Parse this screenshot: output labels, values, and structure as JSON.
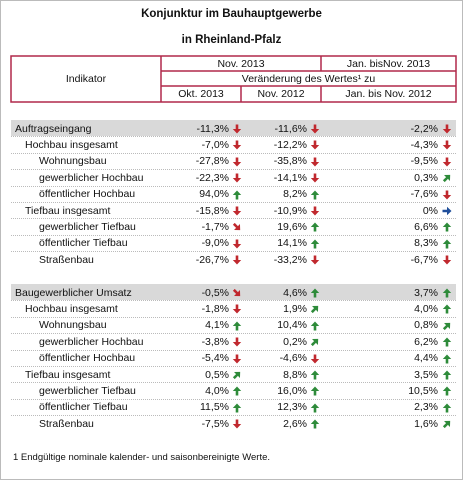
{
  "header": {
    "title": "Konjunktur im Bauhauptgewerbe",
    "subtitle": "in Rheinland-Pfalz"
  },
  "table_header": {
    "indicator": "Indikator",
    "period_month": "Nov. 2013",
    "period_ytd": "Jan. bisNov. 2013",
    "change": "Veränderung des Wertes¹ zu",
    "columns": [
      "Okt. 2013",
      "Nov. 2012",
      "Jan. bis Nov. 2012"
    ]
  },
  "sections": [
    {
      "header": {
        "label": "Auftragseingang",
        "cells": [
          "-11,3%",
          "-11,6%",
          "-2,2%"
        ],
        "arrows": [
          "down",
          "down",
          "down"
        ]
      },
      "rows": [
        {
          "label": "Hochbau insgesamt",
          "level": 1,
          "cells": [
            "-7,0%",
            "-12,2%",
            "-4,3%"
          ],
          "arrows": [
            "down",
            "down",
            "down"
          ]
        },
        {
          "label": "Wohnungsbau",
          "level": 2,
          "cells": [
            "-27,8%",
            "-35,8%",
            "-9,5%"
          ],
          "arrows": [
            "down",
            "down",
            "down"
          ]
        },
        {
          "label": "gewerblicher Hochbau",
          "level": 2,
          "cells": [
            "-22,3%",
            "-14,1%",
            "0,3%"
          ],
          "arrows": [
            "down",
            "down",
            "up-right"
          ]
        },
        {
          "label": "öffentlicher Hochbau",
          "level": 2,
          "cells": [
            "94,0%",
            "8,2%",
            "-7,6%"
          ],
          "arrows": [
            "up",
            "up",
            "down"
          ]
        },
        {
          "label": "Tiefbau insgesamt",
          "level": 1,
          "cells": [
            "-15,8%",
            "-10,9%",
            "0%"
          ],
          "arrows": [
            "down",
            "down",
            "right"
          ]
        },
        {
          "label": "gewerblicher Tiefbau",
          "level": 2,
          "cells": [
            "-1,7%",
            "19,6%",
            "6,6%"
          ],
          "arrows": [
            "down-right",
            "up",
            "up"
          ]
        },
        {
          "label": "öffentlicher Tiefbau",
          "level": 2,
          "cells": [
            "-9,0%",
            "14,1%",
            "8,3%"
          ],
          "arrows": [
            "down",
            "up",
            "up"
          ]
        },
        {
          "label": "Straßenbau",
          "level": 2,
          "cells": [
            "-26,7%",
            "-33,2%",
            "-6,7%"
          ],
          "arrows": [
            "down",
            "down",
            "down"
          ]
        }
      ]
    },
    {
      "header": {
        "label": "Baugewerblicher Umsatz",
        "cells": [
          "-0,5%",
          "4,6%",
          "3,7%"
        ],
        "arrows": [
          "down-right",
          "up",
          "up"
        ]
      },
      "rows": [
        {
          "label": "Hochbau insgesamt",
          "level": 1,
          "cells": [
            "-1,8%",
            "1,9%",
            "4,0%"
          ],
          "arrows": [
            "down",
            "up-right",
            "up"
          ]
        },
        {
          "label": "Wohnungsbau",
          "level": 2,
          "cells": [
            "4,1%",
            "10,4%",
            "0,8%"
          ],
          "arrows": [
            "up",
            "up",
            "up-right"
          ]
        },
        {
          "label": "gewerblicher Hochbau",
          "level": 2,
          "cells": [
            "-3,8%",
            "0,2%",
            "6,2%"
          ],
          "arrows": [
            "down",
            "up-right",
            "up"
          ]
        },
        {
          "label": "öffentlicher Hochbau",
          "level": 2,
          "cells": [
            "-5,4%",
            "-4,6%",
            "4,4%"
          ],
          "arrows": [
            "down",
            "down",
            "up"
          ]
        },
        {
          "label": "Tiefbau insgesamt",
          "level": 1,
          "cells": [
            "0,5%",
            "8,8%",
            "3,5%"
          ],
          "arrows": [
            "up-right",
            "up",
            "up"
          ]
        },
        {
          "label": "gewerblicher Tiefbau",
          "level": 2,
          "cells": [
            "4,0%",
            "16,0%",
            "10,5%"
          ],
          "arrows": [
            "up",
            "up",
            "up"
          ]
        },
        {
          "label": "öffentlicher Tiefbau",
          "level": 2,
          "cells": [
            "11,5%",
            "12,3%",
            "2,3%"
          ],
          "arrows": [
            "up",
            "up",
            "up"
          ]
        },
        {
          "label": "Straßenbau",
          "level": 2,
          "cells": [
            "-7,5%",
            "2,6%",
            "1,6%"
          ],
          "arrows": [
            "down",
            "up",
            "up-right"
          ]
        }
      ]
    }
  ],
  "footnote": "1 Endgültige nominale kalender- und saisonbereinigte Werte."
}
